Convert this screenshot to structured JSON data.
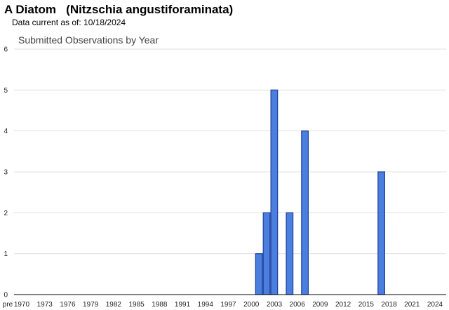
{
  "header": {
    "species_title": "A Diatom   (Nitzschia angustiforaminata)",
    "data_current": "Data current as of: 10/18/2024"
  },
  "chart_data": {
    "type": "bar",
    "title": "Submitted Observations by Year",
    "xlabel": "",
    "ylabel": "",
    "ylim": [
      0,
      6
    ],
    "yticks": [
      0,
      1,
      2,
      3,
      4,
      5,
      6
    ],
    "x_tick_labels": [
      "pre",
      "1970",
      "1973",
      "1976",
      "1979",
      "1982",
      "1985",
      "1988",
      "1991",
      "1994",
      "1997",
      "2000",
      "2003",
      "2006",
      "2009",
      "2012",
      "2015",
      "2018",
      "2021",
      "2024"
    ],
    "categories": [
      "2001",
      "2002",
      "2003",
      "2005",
      "2007",
      "2017"
    ],
    "values": [
      1,
      2,
      5,
      2,
      4,
      3
    ],
    "grid": true,
    "colors": {
      "bar_fill": "#4a7fe0",
      "bar_stroke": "#1f3f9a",
      "grid": "#e0e0e0"
    }
  }
}
